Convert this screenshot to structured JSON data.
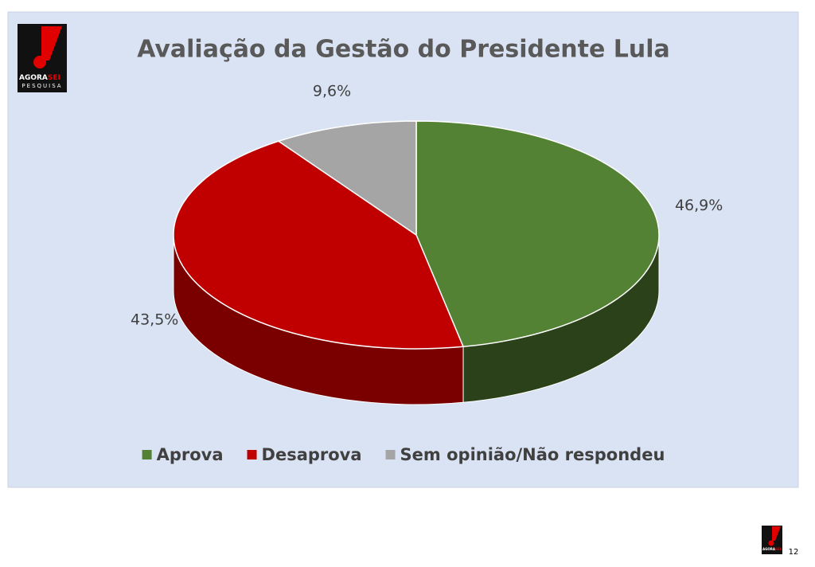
{
  "chart_data": {
    "type": "pie3d",
    "title": "Avaliação da Gestão do Presidente Lula",
    "categories": [
      "Aprova",
      "Desaprova",
      "Sem opinião/Não respondeu"
    ],
    "values": [
      46.9,
      43.5,
      9.6
    ],
    "value_labels": [
      "46,9%",
      "43,5%",
      "9,6%"
    ],
    "colors": [
      "#548235",
      "#c00000",
      "#a5a5a5"
    ],
    "side_colors": [
      "#2a4119",
      "#7a0000",
      "#6e6e6e"
    ],
    "legend": "bottom"
  },
  "logo": {
    "name_black": "AGORA",
    "name_red": "SEI",
    "subtitle": "PESQUISA"
  },
  "page_number": "12"
}
